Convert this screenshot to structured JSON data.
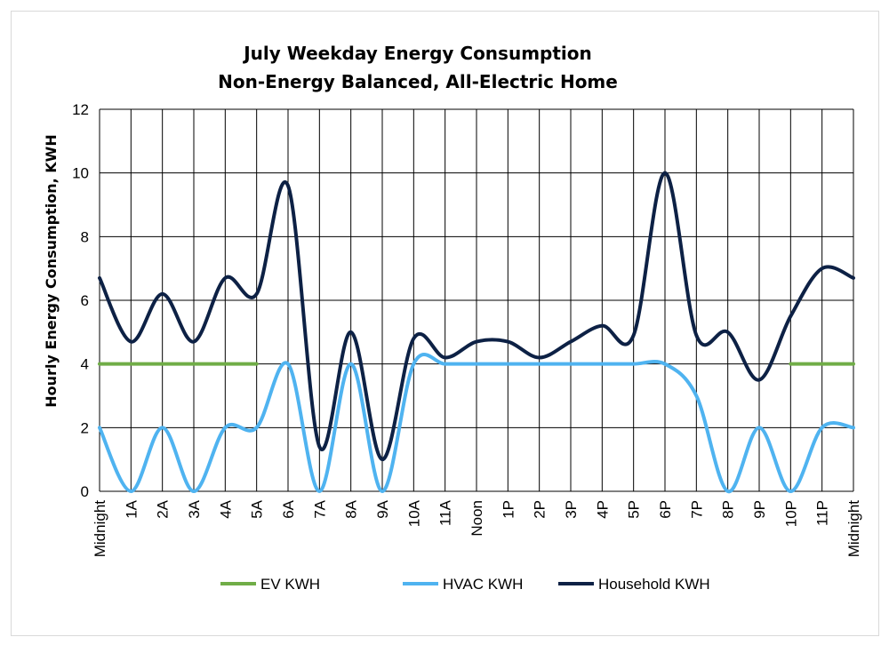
{
  "chart_data": {
    "type": "line",
    "title": "July Weekday Energy Consumption",
    "subtitle": "Non-Energy Balanced, All-Electric Home",
    "xlabel": "",
    "ylabel": "Hourly Energy Consumption, KWH",
    "ylim": [
      0,
      12
    ],
    "yticks": [
      0,
      2,
      4,
      6,
      8,
      10,
      12
    ],
    "grid": true,
    "legend_position": "bottom",
    "categories": [
      "Midnight",
      "1A",
      "2A",
      "3A",
      "4A",
      "5A",
      "6A",
      "7A",
      "8A",
      "9A",
      "10A",
      "11A",
      "Noon",
      "1P",
      "2P",
      "3P",
      "4P",
      "5P",
      "6P",
      "7P",
      "8P",
      "9P",
      "10P",
      "11P",
      "Midnight"
    ],
    "series": [
      {
        "name": "EV KWH",
        "color": "#70ad47",
        "smooth": false,
        "values": [
          4,
          4,
          4,
          4,
          4,
          4,
          null,
          null,
          null,
          null,
          null,
          null,
          null,
          null,
          null,
          null,
          null,
          null,
          null,
          null,
          null,
          null,
          4,
          4,
          4
        ]
      },
      {
        "name": "HVAC KWH",
        "color": "#4fb3f0",
        "smooth": true,
        "values": [
          2,
          0,
          2,
          0,
          2,
          2,
          4,
          0,
          4,
          0,
          4,
          4,
          4,
          4,
          4,
          4,
          4,
          4,
          4,
          3,
          0,
          2,
          0,
          2,
          2
        ]
      },
      {
        "name": "Household KWH",
        "color": "#0d2145",
        "smooth": true,
        "values": [
          6.7,
          4.7,
          6.2,
          4.7,
          6.7,
          6.2,
          9.6,
          1.4,
          5.0,
          1.0,
          4.8,
          4.2,
          4.7,
          4.7,
          4.2,
          4.7,
          5.2,
          4.9,
          10.0,
          4.9,
          5.0,
          3.5,
          5.5,
          7.0,
          6.7
        ]
      }
    ]
  }
}
